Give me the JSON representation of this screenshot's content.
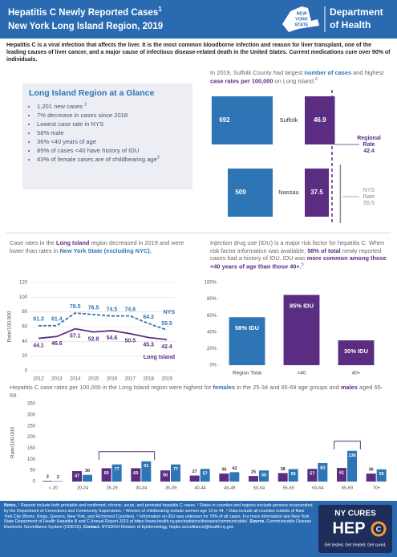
{
  "header": {
    "title": [
      {
        "text": "Hepatitis C Newly Reported Cases"
      },
      {
        "text": "1",
        "style": "sup"
      }
    ],
    "subtitle": "New York Long Island Region, 2019",
    "logo": [
      "NEW",
      "YORK",
      "STATE"
    ],
    "department": [
      "Department",
      "of Health"
    ]
  },
  "intro": "Hepatitis C is a viral infection that affects the liver. It is the most common bloodborne infection and reason for liver transplant, one of the leading causes of liver cancer, and a major cause of infectious disease-related death in the United States. Current medications cure over 90% of individuals.",
  "glance": {
    "title": "Long Island Region at a Glance",
    "items": [
      [
        {
          "text": "1,201 new cases "
        },
        {
          "text": "2",
          "style": "sup"
        }
      ],
      [
        {
          "text": "7% decrease in cases since 2018"
        }
      ],
      [
        {
          "text": "Lowest case rate in NYS"
        }
      ],
      [
        {
          "text": "58% male"
        }
      ],
      [
        {
          "text": "36%  <40 years of age"
        }
      ],
      [
        {
          "text": "85% of cases <40 have history of IDU"
        }
      ],
      [
        {
          "text": "43% of female cases are of childbearing age"
        },
        {
          "text": "3",
          "style": "sup"
        }
      ]
    ]
  },
  "chart_data": [
    {
      "type": "county_bar",
      "caption": [
        {
          "text": "In 2019, Suffolk County had largest "
        },
        {
          "text": "number of cases",
          "style": "blue"
        },
        {
          "text": " and highest "
        },
        {
          "text": "case rates per 100,000",
          "style": "purple"
        },
        {
          "text": " on Long Island."
        },
        {
          "text": "6",
          "style": "sup"
        }
      ],
      "categories": [
        "Suffolk",
        "Nassau"
      ],
      "series": [
        {
          "color": "#2e75b6",
          "values": [
            692,
            509
          ]
        },
        {
          "color": "#5a2d82",
          "values": [
            46.9,
            37.5
          ]
        }
      ],
      "reference_lines": [
        {
          "label": [
            "Regional",
            "Rate"
          ],
          "value": 42.4,
          "color": "#5a2d82",
          "dashed": true
        },
        {
          "label": [
            "NYS",
            "Rate"
          ],
          "value": 55.5,
          "color": "#8a8a8a",
          "dashed": false
        }
      ]
    },
    {
      "type": "line",
      "caption": [
        {
          "text": "Case rates in the "
        },
        {
          "text": "Long Island",
          "style": "purple"
        },
        {
          "text": " region decreased in 2019 and were lower than rates in "
        },
        {
          "text": "New York State (excluding NYC).",
          "style": "blue"
        }
      ],
      "x": [
        2012,
        2013,
        2014,
        2015,
        2016,
        2017,
        2018,
        2019
      ],
      "ylabel": "Rate/100,000",
      "ylim": [
        0,
        120
      ],
      "yticks": [
        0,
        20,
        40,
        60,
        80,
        100,
        120
      ],
      "grid": true,
      "series": [
        {
          "name": "NYS",
          "color": "#2e75b6",
          "dashed": true,
          "values": [
            61.3,
            61.4,
            78.5,
            76.5,
            74.5,
            74.6,
            64.3,
            55.5
          ]
        },
        {
          "name": "Long Island",
          "color": "#5a2d82",
          "dashed": false,
          "values": [
            44.1,
            46.6,
            57.1,
            52.8,
            54.6,
            50.5,
            45.3,
            42.4
          ]
        }
      ]
    },
    {
      "type": "bar",
      "caption": [
        {
          "text": "Injection drug use (IDU) is a major risk factor for hepatitis C. When risk factor information was available, "
        },
        {
          "text": "58% of total",
          "style": "purple"
        },
        {
          "text": " newly reported cases had a history of IDU. IDU was "
        },
        {
          "text": "more common among those <40 years of age than those 40+.",
          "style": "purple"
        },
        {
          "text": "5",
          "style": "sup"
        }
      ],
      "categories": [
        "Region Total",
        "<40",
        "40+"
      ],
      "values": [
        58,
        85,
        30
      ],
      "value_labels": [
        "58% IDU",
        "85% IDU",
        "30% IDU"
      ],
      "colors": [
        "#2e75b6",
        "#5a2d82",
        "#5a2d82"
      ],
      "ylim": [
        0,
        100
      ],
      "yticks": [
        {
          "value": 0,
          "label": "0%"
        },
        {
          "value": 20,
          "label": "20%"
        },
        {
          "value": 40,
          "label": "40%"
        },
        {
          "value": 60,
          "label": "60%"
        },
        {
          "value": 80,
          "label": "80%"
        },
        {
          "value": 100,
          "label": "100%"
        }
      ]
    },
    {
      "type": "grouped_bar",
      "caption": [
        {
          "text": "Hepatitis C case rates per 100,000 in the Long Island region were highest for "
        },
        {
          "text": "females",
          "style": "blue"
        },
        {
          "text": " in the 25-34 and 65-69 age groups and "
        },
        {
          "text": "males",
          "style": "purple"
        },
        {
          "text": " aged 65-69."
        }
      ],
      "categories": [
        "< 20",
        "20-24",
        "25-29",
        "30-34",
        "35-39",
        "40-44",
        "45-49",
        "50-54",
        "55-59",
        "60-64",
        "65-69",
        "70+"
      ],
      "ylabel": "Rate/100,000",
      "ylim": [
        0,
        350
      ],
      "yticks": [
        0,
        50,
        100,
        150,
        200,
        250,
        300,
        350
      ],
      "series": [
        {
          "color": "#5a2d82",
          "values": [
            3,
            47,
            60,
            60,
            50,
            27,
            36,
            25,
            38,
            57,
            61,
            36
          ]
        },
        {
          "color": "#2e75b6",
          "values": [
            2,
            30,
            77,
            91,
            77,
            57,
            42,
            50,
            56,
            83,
            138,
            55
          ]
        }
      ]
    }
  ],
  "notes": [
    {
      "text": "Notes. ",
      "style": "b"
    },
    {
      "text": "¹ Reports include both probable and confirmed, chronic, acute, and perinatal hepatitis C cases. ² Rates in counties and regions exclude persons incarcerated by the Department of Corrections and Community Supervision. ³ Women of childbearing include women age 15 to 44. ⁴ Data include all counties outside of New York City (Bronx, Kings, Queens, New York, and Richmond Counties). ⁵ Information on IDU was unknown for 79% of all cases. For more information see New York State Department of Health Hepatitis B and C Annual Report 2019 at https://www.health.ny.gov/statistics/diseases/communicable/. "
    },
    {
      "text": "Source. ",
      "style": "b"
    },
    {
      "text": "Communicable Disease Electronic Surveillance System (CDESS). "
    },
    {
      "text": "Contact. ",
      "style": "b"
    },
    {
      "text": "NYSDOH Division of Epidemiology, hepbc.surveillance@health.ny.gov"
    }
  ],
  "campaign": {
    "line1": "NY CURES",
    "line2": "HEP",
    "letter": "C",
    "tagline": "Get tested. Get treated. Get cured."
  }
}
